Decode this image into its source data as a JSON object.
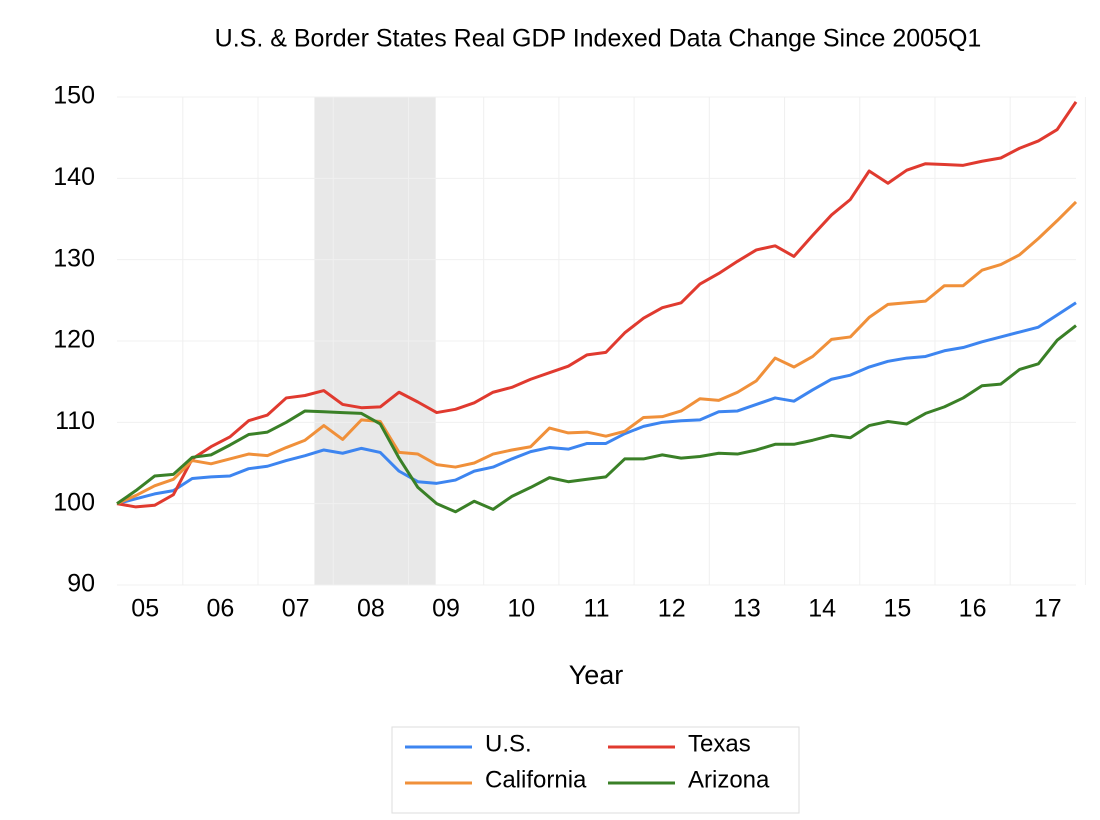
{
  "chart_data": {
    "type": "line",
    "title": "U.S. & Border States Real GDP Indexed Data Change Since 2005Q1",
    "x_label": "Year",
    "categories": [
      null,
      "05",
      null,
      null,
      null,
      "06",
      null,
      null,
      null,
      "07",
      null,
      null,
      null,
      "08",
      null,
      null,
      null,
      "09",
      null,
      null,
      null,
      "10",
      null,
      null,
      null,
      "11",
      null,
      null,
      null,
      "12",
      null,
      null,
      null,
      "13",
      null,
      null,
      null,
      "14",
      null,
      null,
      null,
      "15",
      null,
      null,
      null,
      "16",
      null,
      null,
      null,
      "17",
      null,
      null
    ],
    "series": [
      {
        "name": "U.S.",
        "color": "#3d85f0",
        "values": [
          100,
          100.6,
          101.2,
          101.6,
          103.1,
          103.3,
          103.4,
          104.3,
          104.6,
          105.3,
          105.9,
          106.6,
          106.2,
          106.8,
          106.3,
          104.0,
          102.7,
          102.5,
          102.9,
          104.0,
          104.5,
          105.5,
          106.4,
          106.9,
          106.7,
          107.4,
          107.4,
          108.6,
          109.5,
          110.0,
          110.2,
          110.3,
          111.3,
          111.4,
          112.2,
          113.0,
          112.6,
          114.0,
          115.3,
          115.8,
          116.8,
          117.5,
          117.9,
          118.1,
          118.8,
          119.2,
          119.9,
          120.5,
          121.1,
          121.7,
          123.2,
          124.7
        ]
      },
      {
        "name": "Texas",
        "color": "#e03a2f",
        "values": [
          100,
          99.6,
          99.8,
          101.1,
          105.5,
          107.0,
          108.2,
          110.2,
          110.9,
          113.0,
          113.3,
          113.9,
          112.2,
          111.8,
          111.9,
          113.7,
          112.5,
          111.2,
          111.6,
          112.4,
          113.7,
          114.3,
          115.3,
          116.1,
          116.9,
          118.3,
          118.6,
          121.0,
          122.8,
          124.1,
          124.7,
          127.0,
          128.3,
          129.8,
          131.2,
          131.7,
          130.4,
          133.0,
          135.5,
          137.4,
          140.9,
          139.4,
          141.0,
          141.8,
          141.7,
          141.6,
          142.1,
          142.5,
          143.7,
          144.6,
          146.0,
          149.4
        ]
      },
      {
        "name": "California",
        "color": "#f0903a",
        "values": [
          100,
          101.0,
          102.2,
          103.0,
          105.3,
          104.9,
          105.5,
          106.1,
          105.9,
          106.9,
          107.8,
          109.6,
          107.9,
          110.3,
          110.1,
          106.3,
          106.1,
          104.8,
          104.5,
          105.0,
          106.1,
          106.6,
          107.0,
          109.3,
          108.7,
          108.8,
          108.3,
          108.9,
          110.6,
          110.7,
          111.4,
          112.9,
          112.7,
          113.7,
          115.1,
          117.9,
          116.8,
          118.1,
          120.2,
          120.5,
          122.9,
          124.5,
          124.7,
          124.9,
          126.8,
          126.8,
          128.7,
          129.4,
          130.6,
          132.6,
          134.8,
          137.1
        ]
      },
      {
        "name": "Arizona",
        "color": "#3a8027",
        "values": [
          100,
          101.6,
          103.4,
          103.6,
          105.7,
          106.0,
          107.2,
          108.5,
          108.8,
          110.0,
          111.4,
          111.3,
          111.2,
          111.1,
          109.8,
          105.6,
          102.0,
          100.0,
          99.0,
          100.3,
          99.3,
          100.9,
          102.0,
          103.2,
          102.7,
          103.0,
          103.3,
          105.5,
          105.5,
          106.0,
          105.6,
          105.8,
          106.2,
          106.1,
          106.6,
          107.3,
          107.3,
          107.8,
          108.4,
          108.1,
          109.6,
          110.1,
          109.8,
          111.1,
          111.9,
          113.0,
          114.5,
          114.7,
          116.5,
          117.2,
          120.1,
          121.9
        ]
      }
    ],
    "shade": [
      11,
      17
    ],
    "ylim": [
      90,
      150
    ],
    "yticks": [
      90,
      100,
      110,
      120,
      130,
      140,
      150
    ],
    "grid": true
  }
}
